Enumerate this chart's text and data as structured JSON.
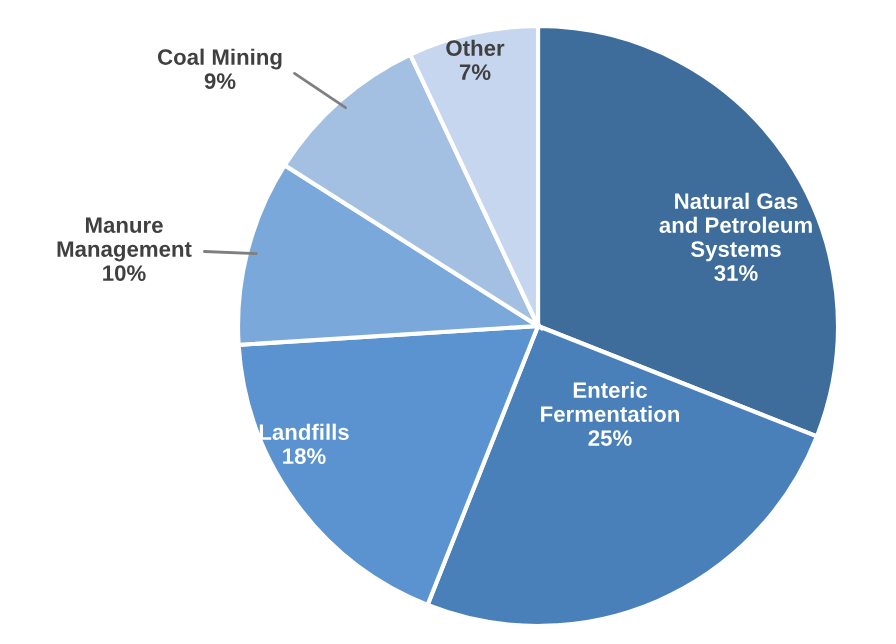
{
  "chart_data": {
    "type": "pie",
    "categories": [
      "Natural Gas\nand Petroleum\nSystems",
      "Enteric\nFermentation",
      "Landfills",
      "Manure\nManagement",
      "Coal Mining",
      "Other"
    ],
    "values": [
      31,
      25,
      18,
      10,
      9,
      7
    ],
    "value_labels": [
      "31%",
      "25%",
      "18%",
      "10%",
      "9%",
      "7%"
    ],
    "colors": [
      "#3e6d9c",
      "#4a80ba",
      "#5a93cf",
      "#7aa8da",
      "#a3c0e3",
      "#c6d6ee"
    ],
    "legend": false
  }
}
